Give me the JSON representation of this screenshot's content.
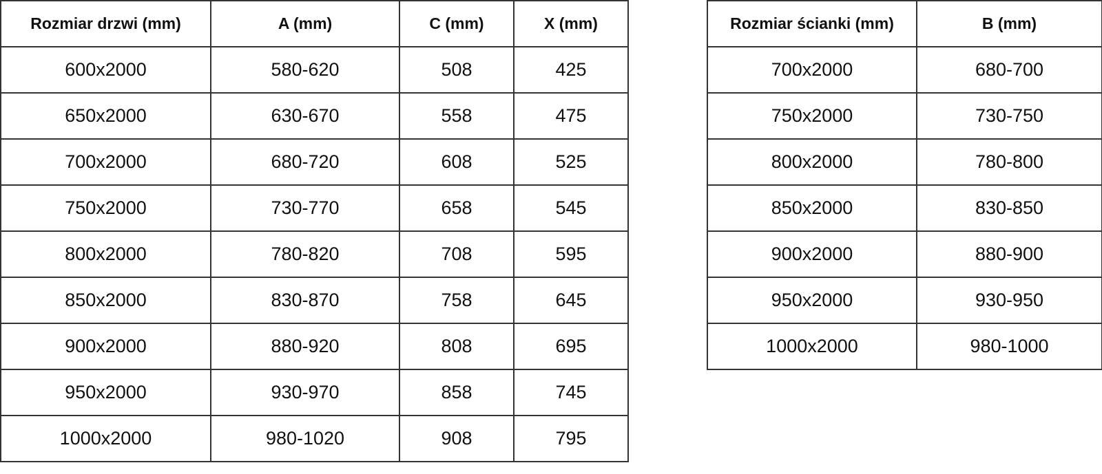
{
  "doors_table": {
    "headers": [
      "Rozmiar drzwi (mm)",
      "A (mm)",
      "C (mm)",
      "X (mm)"
    ],
    "rows": [
      [
        "600x2000",
        "580-620",
        "508",
        "425"
      ],
      [
        "650x2000",
        "630-670",
        "558",
        "475"
      ],
      [
        "700x2000",
        "680-720",
        "608",
        "525"
      ],
      [
        "750x2000",
        "730-770",
        "658",
        "545"
      ],
      [
        "800x2000",
        "780-820",
        "708",
        "595"
      ],
      [
        "850x2000",
        "830-870",
        "758",
        "645"
      ],
      [
        "900x2000",
        "880-920",
        "808",
        "695"
      ],
      [
        "950x2000",
        "930-970",
        "858",
        "745"
      ],
      [
        "1000x2000",
        "980-1020",
        "908",
        "795"
      ]
    ]
  },
  "wall_table": {
    "headers": [
      "Rozmiar ścianki (mm)",
      "B (mm)"
    ],
    "rows": [
      [
        "700x2000",
        "680-700"
      ],
      [
        "750x2000",
        "730-750"
      ],
      [
        "800x2000",
        "780-800"
      ],
      [
        "850x2000",
        "830-850"
      ],
      [
        "900x2000",
        "880-900"
      ],
      [
        "950x2000",
        "930-950"
      ],
      [
        "1000x2000",
        "980-1000"
      ]
    ]
  }
}
